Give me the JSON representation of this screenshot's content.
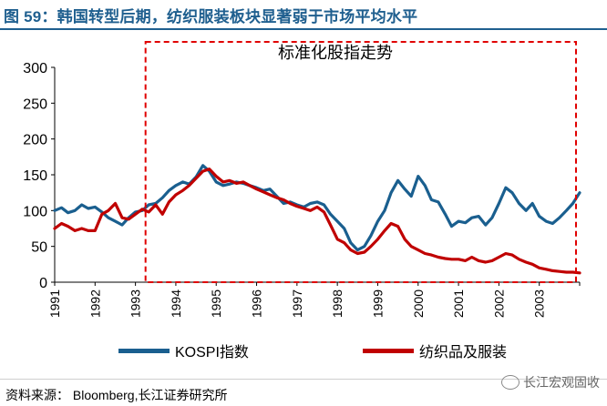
{
  "figure": {
    "title": "图 59：韩国转型后期，纺织服装板块显著弱于市场平均水平",
    "source": "资料来源：  Bloomberg,长江证券研究所",
    "watermark": "长江宏观固收"
  },
  "colors": {
    "title": "#1f5f8f",
    "kospi": "#1a5f8f",
    "textile": "#c00000",
    "box": "#e00000"
  },
  "chart_data": {
    "type": "line",
    "title": "标准化股指走势",
    "xlabel": "",
    "ylabel": "",
    "ylim": [
      0,
      300
    ],
    "xlim": [
      1991,
      2004
    ],
    "yticks": [
      0,
      50,
      100,
      150,
      200,
      250,
      300
    ],
    "xtick_labels": [
      "1991",
      "1992",
      "1993",
      "1994",
      "1995",
      "1996",
      "1997",
      "1998",
      "1999",
      "2000",
      "2001",
      "2002",
      "2003"
    ],
    "highlight_box": {
      "x_start": 1993.25,
      "x_end": 2004,
      "y_start": 0,
      "y_end": 300,
      "style": "dashed"
    },
    "legend_position": "bottom",
    "series": [
      {
        "name": "KOSPI指数",
        "color": "#1a5f8f",
        "points": [
          [
            1991.0,
            100
          ],
          [
            1991.17,
            104
          ],
          [
            1991.33,
            97
          ],
          [
            1991.5,
            100
          ],
          [
            1991.67,
            108
          ],
          [
            1991.83,
            103
          ],
          [
            1992.0,
            105
          ],
          [
            1992.17,
            98
          ],
          [
            1992.33,
            90
          ],
          [
            1992.5,
            85
          ],
          [
            1992.67,
            80
          ],
          [
            1992.83,
            90
          ],
          [
            1993.0,
            98
          ],
          [
            1993.17,
            100
          ],
          [
            1993.33,
            108
          ],
          [
            1993.5,
            110
          ],
          [
            1993.67,
            118
          ],
          [
            1993.83,
            128
          ],
          [
            1994.0,
            135
          ],
          [
            1994.17,
            140
          ],
          [
            1994.33,
            137
          ],
          [
            1994.5,
            147
          ],
          [
            1994.67,
            163
          ],
          [
            1994.83,
            155
          ],
          [
            1995.0,
            140
          ],
          [
            1995.17,
            135
          ],
          [
            1995.33,
            137
          ],
          [
            1995.5,
            140
          ],
          [
            1995.67,
            138
          ],
          [
            1995.83,
            135
          ],
          [
            1996.0,
            132
          ],
          [
            1996.17,
            128
          ],
          [
            1996.33,
            130
          ],
          [
            1996.5,
            120
          ],
          [
            1996.67,
            110
          ],
          [
            1996.83,
            112
          ],
          [
            1997.0,
            108
          ],
          [
            1997.17,
            105
          ],
          [
            1997.33,
            110
          ],
          [
            1997.5,
            112
          ],
          [
            1997.67,
            108
          ],
          [
            1997.83,
            95
          ],
          [
            1998.0,
            85
          ],
          [
            1998.17,
            75
          ],
          [
            1998.33,
            55
          ],
          [
            1998.5,
            45
          ],
          [
            1998.67,
            50
          ],
          [
            1998.83,
            65
          ],
          [
            1999.0,
            85
          ],
          [
            1999.17,
            100
          ],
          [
            1999.33,
            125
          ],
          [
            1999.5,
            142
          ],
          [
            1999.67,
            130
          ],
          [
            1999.83,
            120
          ],
          [
            2000.0,
            148
          ],
          [
            2000.17,
            135
          ],
          [
            2000.33,
            115
          ],
          [
            2000.5,
            112
          ],
          [
            2000.67,
            95
          ],
          [
            2000.83,
            78
          ],
          [
            2001.0,
            85
          ],
          [
            2001.17,
            83
          ],
          [
            2001.33,
            90
          ],
          [
            2001.5,
            92
          ],
          [
            2001.67,
            80
          ],
          [
            2001.83,
            90
          ],
          [
            2002.0,
            110
          ],
          [
            2002.17,
            132
          ],
          [
            2002.33,
            125
          ],
          [
            2002.5,
            110
          ],
          [
            2002.67,
            100
          ],
          [
            2002.83,
            110
          ],
          [
            2003.0,
            92
          ],
          [
            2003.17,
            85
          ],
          [
            2003.33,
            82
          ],
          [
            2003.5,
            90
          ],
          [
            2003.67,
            100
          ],
          [
            2003.83,
            110
          ],
          [
            2004.0,
            125
          ]
        ]
      },
      {
        "name": "纺织品及服装",
        "color": "#c00000",
        "points": [
          [
            1991.0,
            75
          ],
          [
            1991.17,
            82
          ],
          [
            1991.33,
            78
          ],
          [
            1991.5,
            72
          ],
          [
            1991.67,
            75
          ],
          [
            1991.83,
            72
          ],
          [
            1992.0,
            72
          ],
          [
            1992.17,
            95
          ],
          [
            1992.33,
            100
          ],
          [
            1992.5,
            110
          ],
          [
            1992.67,
            90
          ],
          [
            1992.83,
            88
          ],
          [
            1993.0,
            95
          ],
          [
            1993.17,
            102
          ],
          [
            1993.33,
            98
          ],
          [
            1993.5,
            108
          ],
          [
            1993.67,
            95
          ],
          [
            1993.83,
            112
          ],
          [
            1994.0,
            122
          ],
          [
            1994.17,
            128
          ],
          [
            1994.33,
            135
          ],
          [
            1994.5,
            145
          ],
          [
            1994.67,
            155
          ],
          [
            1994.83,
            158
          ],
          [
            1995.0,
            148
          ],
          [
            1995.17,
            140
          ],
          [
            1995.33,
            142
          ],
          [
            1995.5,
            138
          ],
          [
            1995.67,
            140
          ],
          [
            1995.83,
            135
          ],
          [
            1996.0,
            130
          ],
          [
            1996.17,
            126
          ],
          [
            1996.33,
            122
          ],
          [
            1996.5,
            118
          ],
          [
            1996.67,
            115
          ],
          [
            1996.83,
            110
          ],
          [
            1997.0,
            106
          ],
          [
            1997.17,
            103
          ],
          [
            1997.33,
            100
          ],
          [
            1997.5,
            105
          ],
          [
            1997.67,
            98
          ],
          [
            1997.83,
            80
          ],
          [
            1998.0,
            60
          ],
          [
            1998.17,
            55
          ],
          [
            1998.33,
            45
          ],
          [
            1998.5,
            40
          ],
          [
            1998.67,
            42
          ],
          [
            1998.83,
            50
          ],
          [
            1999.0,
            60
          ],
          [
            1999.17,
            72
          ],
          [
            1999.33,
            82
          ],
          [
            1999.5,
            78
          ],
          [
            1999.67,
            60
          ],
          [
            1999.83,
            50
          ],
          [
            2000.0,
            45
          ],
          [
            2000.17,
            40
          ],
          [
            2000.33,
            38
          ],
          [
            2000.5,
            35
          ],
          [
            2000.67,
            33
          ],
          [
            2000.83,
            32
          ],
          [
            2001.0,
            32
          ],
          [
            2001.17,
            30
          ],
          [
            2001.33,
            35
          ],
          [
            2001.5,
            30
          ],
          [
            2001.67,
            28
          ],
          [
            2001.83,
            30
          ],
          [
            2002.0,
            35
          ],
          [
            2002.17,
            40
          ],
          [
            2002.33,
            38
          ],
          [
            2002.5,
            32
          ],
          [
            2002.67,
            28
          ],
          [
            2002.83,
            25
          ],
          [
            2003.0,
            20
          ],
          [
            2003.17,
            18
          ],
          [
            2003.33,
            16
          ],
          [
            2003.5,
            15
          ],
          [
            2003.67,
            14
          ],
          [
            2003.83,
            14
          ],
          [
            2004.0,
            13
          ]
        ]
      }
    ]
  }
}
